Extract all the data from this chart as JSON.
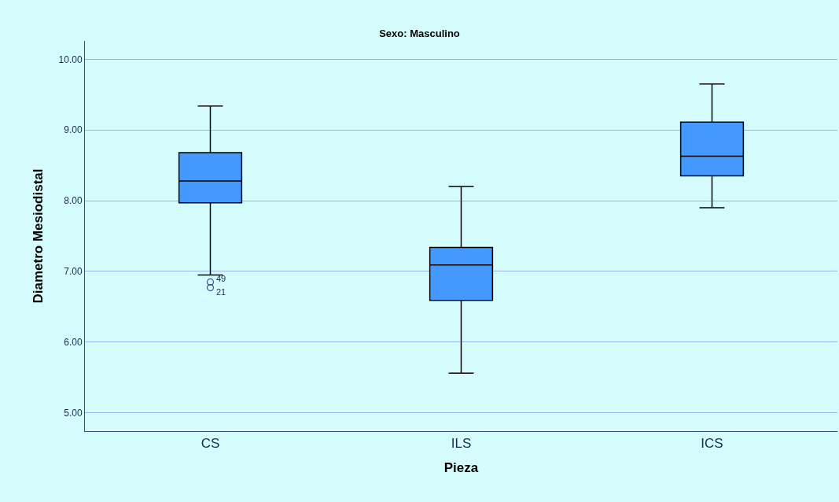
{
  "chart_data": {
    "type": "box",
    "title": "Sexo: Masculino",
    "xlabel": "Pieza",
    "ylabel": "Diametro Mesiodistal",
    "categories": [
      "CS",
      "ILS",
      "ICS"
    ],
    "boxes": [
      {
        "low": 6.95,
        "q1": 7.97,
        "median": 8.28,
        "q3": 8.68,
        "high": 9.34,
        "outliers": [
          6.85,
          6.77
        ]
      },
      {
        "low": 5.56,
        "q1": 6.59,
        "median": 7.09,
        "q3": 7.34,
        "high": 8.2
      },
      {
        "low": 7.9,
        "q1": 8.35,
        "median": 8.63,
        "q3": 9.11,
        "high": 9.65
      }
    ],
    "color": "#4499ff",
    "annotations": [
      "49",
      "21"
    ],
    "ylim": [
      4.74,
      10.26
    ],
    "yticks": [
      {
        "value": 5,
        "label": "5.00"
      },
      {
        "value": 6,
        "label": "6.00"
      },
      {
        "value": 7,
        "label": "7.00"
      },
      {
        "value": 8,
        "label": "8.00"
      },
      {
        "value": 9,
        "label": "9.00"
      },
      {
        "value": 10,
        "label": "10.00"
      }
    ],
    "grid": "y"
  }
}
